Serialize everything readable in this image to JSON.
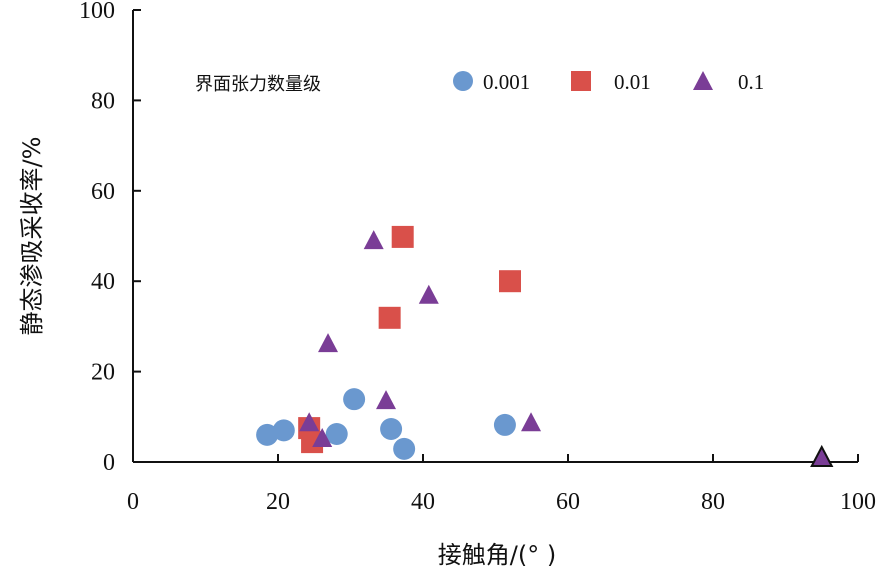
{
  "chart_data": {
    "type": "scatter",
    "title": "",
    "xlabel": "接触角/(°  )",
    "ylabel": "静态渗吸采收率/%",
    "xlim": [
      0,
      100
    ],
    "ylim": [
      0,
      100
    ],
    "xticks": [
      0,
      20,
      40,
      60,
      80,
      100
    ],
    "yticks": [
      0,
      20,
      40,
      60,
      80,
      100
    ],
    "grid": false,
    "legend": {
      "title": "界面张力数量级",
      "placement": "top"
    },
    "series": [
      {
        "name": "0.001",
        "marker": "circle",
        "color": "#6a98cf",
        "points": [
          [
            18.5,
            6.0
          ],
          [
            20.8,
            7.0
          ],
          [
            28.1,
            6.2
          ],
          [
            30.5,
            13.9
          ],
          [
            35.6,
            7.3
          ],
          [
            37.4,
            2.9
          ],
          [
            51.3,
            8.2
          ]
        ]
      },
      {
        "name": "0.01",
        "marker": "square",
        "color": "#d9504a",
        "points": [
          [
            24.3,
            7.5
          ],
          [
            24.7,
            4.4
          ],
          [
            37.2,
            49.8
          ],
          [
            35.4,
            31.9
          ],
          [
            52.0,
            40.0
          ]
        ]
      },
      {
        "name": "0.1",
        "marker": "triangle",
        "color": "#7a3d96",
        "points": [
          [
            33.2,
            49.1
          ],
          [
            40.8,
            37.0
          ],
          [
            26.9,
            26.3
          ],
          [
            34.9,
            13.7
          ],
          [
            24.3,
            8.8
          ],
          [
            26.1,
            5.3
          ],
          [
            54.9,
            8.8
          ],
          [
            95.0,
            1.1
          ]
        ]
      }
    ]
  }
}
